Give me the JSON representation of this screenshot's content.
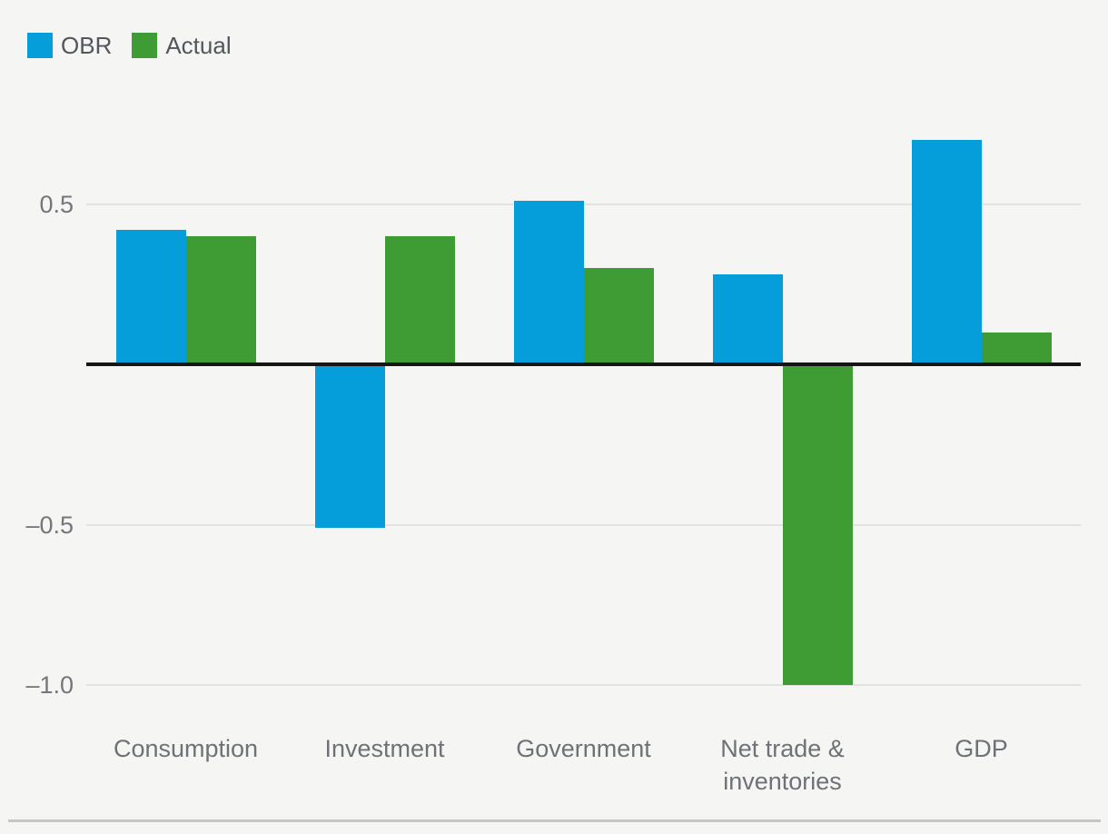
{
  "chart_data": {
    "type": "bar",
    "title": "",
    "xlabel": "",
    "ylabel": "",
    "categories": [
      "Consumption",
      "Investment",
      "Government",
      "Net trade & inventories",
      "GDP"
    ],
    "series": [
      {
        "name": "OBR",
        "color": "#059edb",
        "values": [
          0.42,
          -0.51,
          0.51,
          0.28,
          0.7
        ]
      },
      {
        "name": "Actual",
        "color": "#3f9b34",
        "values": [
          0.4,
          0.4,
          0.3,
          -1.0,
          0.1
        ]
      }
    ],
    "y_ticks": [
      {
        "value": 0.5,
        "label": "0.5"
      },
      {
        "value": -0.5,
        "label": "–0.5"
      },
      {
        "value": -1.0,
        "label": "–1.0"
      }
    ],
    "ylim": [
      -1.25,
      0.85
    ],
    "grid": "horizontal",
    "legend_position": "top-left",
    "colors": {
      "background": "#f5f5f3",
      "zero_axis": "#151515",
      "gridline": "#e2e2e0",
      "tick_text": "#74767b",
      "category_text": "#6e7176",
      "legend_text": "#53565c",
      "bottom_border": "#c6c6c5"
    }
  }
}
